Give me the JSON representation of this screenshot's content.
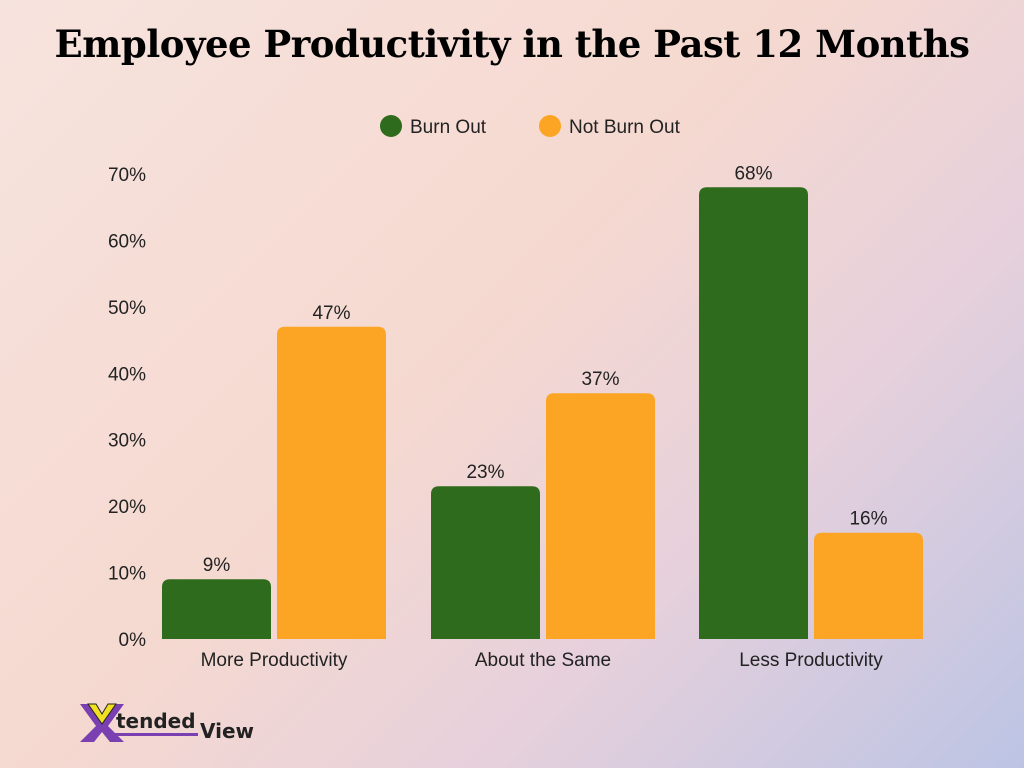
{
  "chart_data": {
    "type": "bar",
    "title": "Employee Productivity in the Past 12 Months",
    "categories": [
      "More Productivity",
      "About the Same",
      "Less Productivity"
    ],
    "series": [
      {
        "name": "Burn Out",
        "color": "#2e6b1c",
        "values": [
          9,
          23,
          68
        ]
      },
      {
        "name": "Not Burn Out",
        "color": "#fca524",
        "values": [
          47,
          37,
          16
        ]
      }
    ],
    "data_labels": [
      [
        "9%",
        "23%",
        "68%"
      ],
      [
        "47%",
        "37%",
        "16%"
      ]
    ],
    "yticks": [
      "0%",
      "10%",
      "20%",
      "30%",
      "40%",
      "50%",
      "60%",
      "70%"
    ],
    "ylim": [
      0,
      70
    ],
    "xlabel": "",
    "ylabel": "",
    "grid": false,
    "legend_position": "top-center"
  },
  "logo": {
    "text_x": "X",
    "text_tended": "tended",
    "text_view": "View"
  }
}
